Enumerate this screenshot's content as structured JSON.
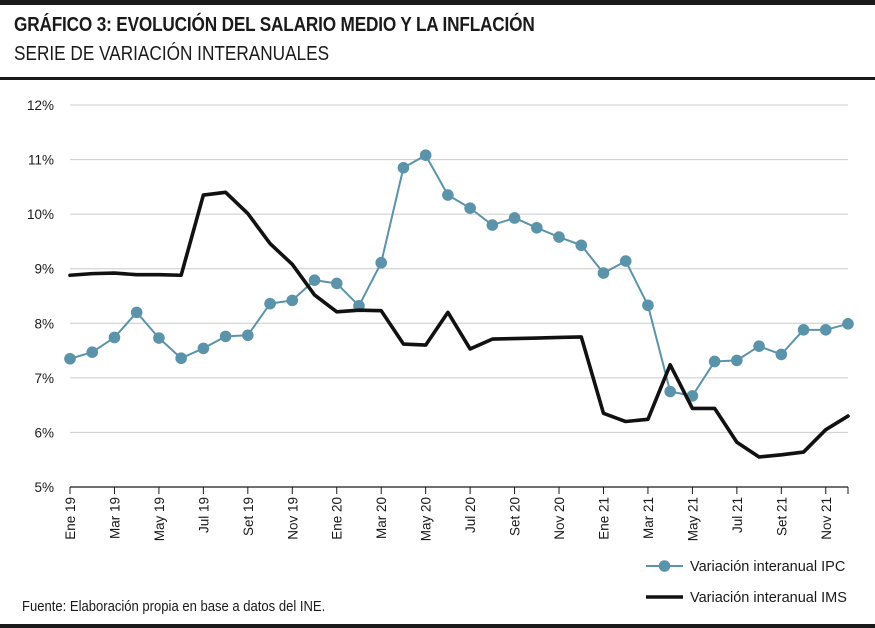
{
  "header": {
    "title": "GRÁFICO 3: EVOLUCIÓN DEL SALARIO MEDIO Y LA INFLACIÓN",
    "subtitle": "SERIE DE VARIACIÓN INTERANUALES"
  },
  "footer": {
    "source": "Fuente: Elaboración propia en base a datos del INE."
  },
  "colors": {
    "ipc": "#5b93aa",
    "ims": "#111111",
    "grid": "#cccccc"
  },
  "chart_data": {
    "type": "line",
    "title": "GRÁFICO 3: EVOLUCIÓN DEL SALARIO MEDIO Y LA INFLACIÓN",
    "subtitle": "SERIE DE VARIACIÓN INTERANUALES",
    "xlabel": "",
    "ylabel": "",
    "ylim": [
      5,
      12
    ],
    "y_ticks": [
      5,
      6,
      7,
      8,
      9,
      10,
      11,
      12
    ],
    "y_tick_labels": [
      "5%",
      "6%",
      "7%",
      "8%",
      "9%",
      "10%",
      "11%",
      "12%"
    ],
    "x_tick_labels": [
      "Ene 19",
      "Mar 19",
      "May 19",
      "Jul 19",
      "Set 19",
      "Nov 19",
      "Ene 20",
      "Mar 20",
      "May 20",
      "Jul 20",
      "Set 20",
      "Nov 20",
      "Ene 21",
      "Mar 21",
      "May 21",
      "Jul 21",
      "Set 21",
      "Nov 21"
    ],
    "grid": true,
    "legend_position": "bottom-right",
    "series": [
      {
        "name": "Variación interanual IPC",
        "style": "line-with-markers",
        "color": "#5b93aa",
        "values": [
          7.35,
          7.47,
          7.74,
          8.2,
          7.73,
          7.36,
          7.54,
          7.76,
          7.78,
          8.36,
          8.42,
          8.79,
          8.73,
          8.32,
          9.11,
          10.85,
          11.08,
          10.35,
          10.11,
          9.8,
          9.93,
          9.75,
          9.58,
          9.43,
          8.92,
          9.14,
          8.33,
          6.75,
          6.67,
          7.3,
          7.32,
          7.58,
          7.43,
          7.88,
          7.88,
          7.99
        ]
      },
      {
        "name": "Variación interanual IMS",
        "style": "line",
        "color": "#111111",
        "values": [
          8.88,
          8.91,
          8.92,
          8.89,
          8.89,
          8.88,
          10.35,
          10.4,
          10.01,
          9.46,
          9.08,
          8.52,
          8.21,
          8.24,
          8.23,
          7.62,
          7.6,
          8.2,
          7.53,
          7.71,
          7.72,
          7.73,
          7.74,
          7.75,
          6.35,
          6.2,
          6.24,
          7.24,
          6.44,
          6.44,
          5.82,
          5.55,
          5.59,
          5.64,
          6.05,
          6.3
        ]
      }
    ]
  }
}
